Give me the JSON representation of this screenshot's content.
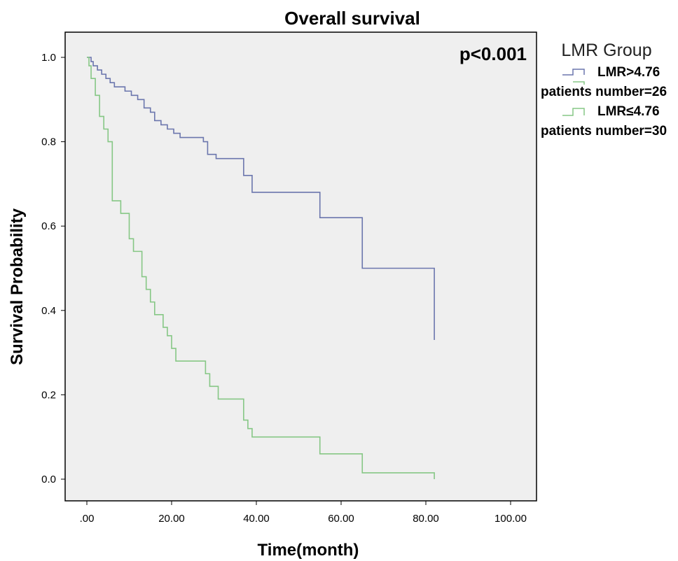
{
  "chart_data": {
    "type": "line",
    "step": true,
    "title": "Overall survival",
    "xlabel": "Time(month)",
    "ylabel": "Survival Probability",
    "xlim": [
      0,
      100
    ],
    "ylim": [
      0,
      1
    ],
    "x_ticks": [
      0,
      20,
      40,
      60,
      80,
      100
    ],
    "x_tick_labels": [
      ".00",
      "20.00",
      "40.00",
      "60.00",
      "80.00",
      "100.00"
    ],
    "y_ticks": [
      0,
      0.2,
      0.4,
      0.6,
      0.8,
      1.0
    ],
    "y_tick_labels": [
      "0.0",
      "0.2",
      "0.4",
      "0.6",
      "0.8",
      "1.0"
    ],
    "annotation": "p<0.001",
    "grid": false,
    "background_color": "#efefef",
    "legend": {
      "title": "LMR Group",
      "placement": "right",
      "entries": [
        {
          "label": "LMR>4.76",
          "sub": "patients number=26",
          "color": "#6b76ad"
        },
        {
          "label": "LMR≤4.76",
          "sub": "patients number=30",
          "color": "#86c785"
        }
      ]
    },
    "series": [
      {
        "name": "LMR>4.76",
        "color": "#6b76ad",
        "x": [
          0,
          1,
          1.5,
          2.5,
          3.5,
          4.5,
          5.5,
          6.5,
          9,
          10.5,
          12,
          13.5,
          15,
          16,
          17.5,
          19,
          20.5,
          22,
          23.5,
          27.5,
          28.5,
          30.5,
          35,
          37,
          39,
          55,
          65,
          82
        ],
        "y": [
          1.0,
          0.99,
          0.98,
          0.97,
          0.96,
          0.95,
          0.94,
          0.93,
          0.92,
          0.91,
          0.9,
          0.88,
          0.87,
          0.85,
          0.84,
          0.83,
          0.82,
          0.81,
          0.81,
          0.8,
          0.77,
          0.76,
          0.76,
          0.72,
          0.68,
          0.62,
          0.5,
          0.33
        ]
      },
      {
        "name": "LMR≤4.76",
        "color": "#86c785",
        "x": [
          0,
          0.5,
          1,
          2,
          3,
          4,
          5,
          6,
          8,
          10,
          11,
          13,
          14,
          15,
          16,
          18,
          19,
          20,
          21,
          23,
          28,
          29,
          31,
          37,
          38,
          39,
          55,
          65,
          82
        ],
        "y": [
          1.0,
          0.98,
          0.95,
          0.91,
          0.86,
          0.83,
          0.8,
          0.66,
          0.63,
          0.57,
          0.54,
          0.48,
          0.45,
          0.42,
          0.39,
          0.36,
          0.34,
          0.31,
          0.28,
          0.28,
          0.25,
          0.22,
          0.19,
          0.14,
          0.12,
          0.1,
          0.06,
          0.015,
          0.0
        ]
      }
    ]
  }
}
